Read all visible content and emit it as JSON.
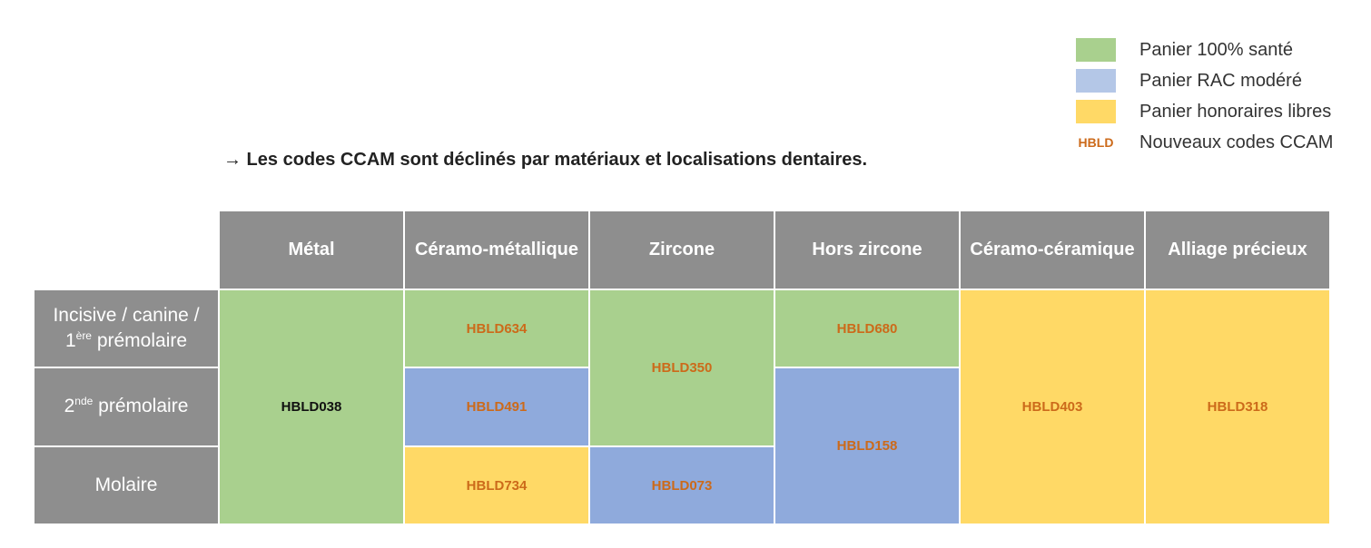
{
  "legend": {
    "items": [
      {
        "label": "Panier 100% santé",
        "color": "#a9d08e"
      },
      {
        "label": "Panier RAC modéré",
        "color": "#b4c7e7"
      },
      {
        "label": "Panier honoraires libres",
        "color": "#ffd966"
      }
    ],
    "code_prefix": "HBLD",
    "code_label": "Nouveaux codes CCAM"
  },
  "heading": "→ Les codes CCAM sont déclinés par matériaux et localisations dentaires.",
  "table": {
    "columns": [
      "Métal",
      "Céramo-métallique",
      "Zircone",
      "Hors zircone",
      "Céramo-céramique",
      "Alliage précieux"
    ],
    "rows": {
      "r1_line1": "Incisive / canine /",
      "r1_sup": "ère",
      "r1_rest": " prémolaire",
      "r2_sup": "nde",
      "r2_rest": " prémolaire",
      "r3": "Molaire"
    },
    "codes": {
      "metal_all": "HBLD038",
      "ceramo_metal_r1": "HBLD634",
      "ceramo_metal_r2": "HBLD491",
      "ceramo_metal_r3": "HBLD734",
      "zircone_r12": "HBLD350",
      "zircone_r3": "HBLD073",
      "hors_zircone_r1": "HBLD680",
      "hors_zircone_r23": "HBLD158",
      "ceramo_ceram_all": "HBLD403",
      "alliage_all": "HBLD318"
    }
  },
  "colors": {
    "green": "#a9d08e",
    "blue": "#8faadc",
    "yellow": "#ffd966",
    "header_gray": "#8e8e8e",
    "code_orange": "#cc6a1a"
  }
}
